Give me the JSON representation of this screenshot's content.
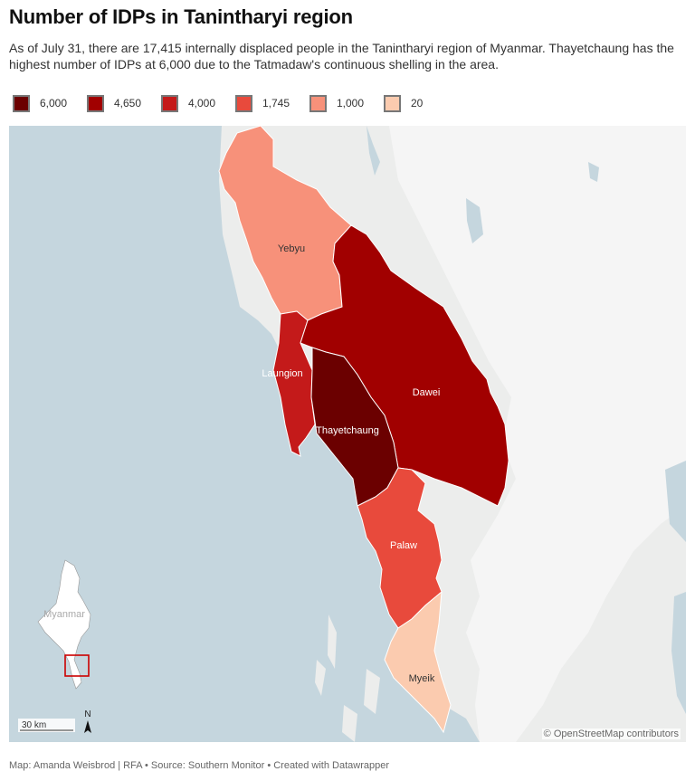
{
  "title": "Number of IDPs in Tanintharyi region",
  "subtitle": "As of July 31, there are 17,415 internally displaced people in the Tanintharyi region of Myanmar. Thayetchaung has the highest number of IDPs at 6,000 due to the Tatmadaw's continuous shelling in the area.",
  "legend": [
    {
      "label": "6,000",
      "color": "#6b0000"
    },
    {
      "label": "4,650",
      "color": "#a10000"
    },
    {
      "label": "4,000",
      "color": "#c41a1a"
    },
    {
      "label": "1,745",
      "color": "#e84a3c"
    },
    {
      "label": "1,000",
      "color": "#f7917a"
    },
    {
      "label": "20",
      "color": "#fbcbaf"
    }
  ],
  "regions": [
    {
      "name": "Yebyu",
      "idps": 1000,
      "color": "#f7917a"
    },
    {
      "name": "Laungion",
      "idps": 4000,
      "color": "#c41a1a"
    },
    {
      "name": "Dawei",
      "idps": 4650,
      "color": "#a10000"
    },
    {
      "name": "Thayetchaung",
      "idps": 6000,
      "color": "#6b0000"
    },
    {
      "name": "Palaw",
      "idps": 1745,
      "color": "#e84a3c"
    },
    {
      "name": "Myeik",
      "idps": 20,
      "color": "#fbcbaf"
    }
  ],
  "colors": {
    "sea": "#c5d6de",
    "land": "#ecedec",
    "land_east": "#f4f4f4"
  },
  "inset_label": "Myanmar",
  "scale_label": "30 km",
  "north_label": "N",
  "attribution": "© OpenStreetMap contributors",
  "footer": "Map: Amanda Weisbrod | RFA • Source: Southern Monitor • Created with Datawrapper"
}
